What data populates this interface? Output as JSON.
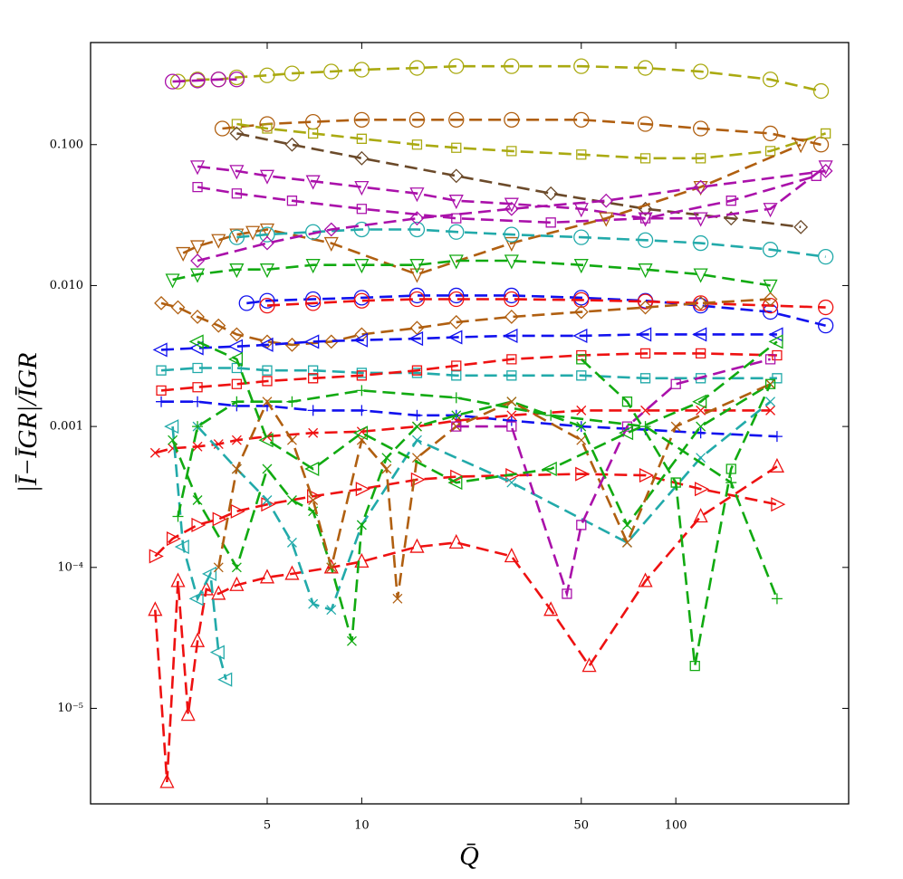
{
  "chart_data": {
    "type": "line",
    "xscale": "log",
    "yscale": "log",
    "xlabel": "Q̄",
    "ylabel": "|Ī−ĪGR|/ĪGR",
    "xlim": [
      1.37,
      355
    ],
    "ylim": [
      2.1e-06,
      0.53
    ],
    "xticks": [
      5,
      10,
      50,
      100
    ],
    "yticks": [
      {
        "value": 0.1,
        "label": "0.100"
      },
      {
        "value": 0.01,
        "label": "0.010"
      },
      {
        "value": 0.001,
        "label": "0.001"
      },
      {
        "value": 0.0001,
        "label": "10⁻⁴"
      },
      {
        "value": 1e-05,
        "label": "10⁻⁵"
      }
    ],
    "series": [
      {
        "color": "#aaaa11",
        "marker": "circle",
        "x": [
          2.6,
          3,
          3.5,
          4,
          5,
          6,
          8,
          10,
          15,
          20,
          30,
          50,
          80,
          120,
          200,
          290
        ],
        "values": [
          0.28,
          0.29,
          0.29,
          0.3,
          0.31,
          0.32,
          0.33,
          0.34,
          0.35,
          0.36,
          0.36,
          0.36,
          0.35,
          0.33,
          0.29,
          0.24
        ]
      },
      {
        "color": "#aa11aa",
        "marker": "circle",
        "x": [
          2.5,
          3,
          3.5,
          4
        ],
        "values": [
          0.28,
          0.285,
          0.29,
          0.29
        ]
      },
      {
        "color": "#b05f10",
        "marker": "circle",
        "x": [
          3.6,
          5,
          7,
          10,
          15,
          20,
          30,
          50,
          80,
          120,
          200,
          290
        ],
        "values": [
          0.13,
          0.14,
          0.145,
          0.15,
          0.15,
          0.15,
          0.15,
          0.15,
          0.14,
          0.13,
          0.12,
          0.1
        ]
      },
      {
        "color": "#aaaa11",
        "marker": "square",
        "x": [
          4,
          5,
          7,
          10,
          15,
          20,
          30,
          50,
          80,
          120,
          200,
          300
        ],
        "values": [
          0.14,
          0.13,
          0.12,
          0.11,
          0.1,
          0.095,
          0.09,
          0.085,
          0.08,
          0.08,
          0.09,
          0.12
        ]
      },
      {
        "color": "#6b4a2a",
        "marker": "diamond",
        "x": [
          4,
          6,
          10,
          20,
          40,
          80,
          150,
          250
        ],
        "values": [
          0.12,
          0.1,
          0.08,
          0.06,
          0.045,
          0.035,
          0.03,
          0.026
        ]
      },
      {
        "color": "#aa11aa",
        "marker": "triangle-down",
        "x": [
          3,
          4,
          5,
          7,
          10,
          15,
          20,
          30,
          50,
          80,
          120,
          200,
          300
        ],
        "values": [
          0.07,
          0.065,
          0.06,
          0.055,
          0.05,
          0.045,
          0.04,
          0.038,
          0.035,
          0.03,
          0.03,
          0.035,
          0.07
        ]
      },
      {
        "color": "#aa11aa",
        "marker": "square",
        "x": [
          3,
          4,
          6,
          10,
          20,
          40,
          80,
          150,
          280
        ],
        "values": [
          0.05,
          0.045,
          0.04,
          0.035,
          0.03,
          0.028,
          0.03,
          0.04,
          0.06
        ]
      },
      {
        "color": "#b05f10",
        "marker": "triangle-down",
        "x": [
          2.7,
          3,
          3.5,
          4,
          4.5,
          5,
          8,
          15,
          30,
          60,
          120,
          250
        ],
        "values": [
          0.017,
          0.019,
          0.021,
          0.023,
          0.024,
          0.025,
          0.02,
          0.012,
          0.02,
          0.03,
          0.05,
          0.1
        ]
      },
      {
        "color": "#22aaaa",
        "marker": "circle",
        "x": [
          4,
          5,
          7,
          10,
          15,
          20,
          30,
          50,
          80,
          120,
          200,
          300
        ],
        "values": [
          0.022,
          0.023,
          0.024,
          0.025,
          0.025,
          0.024,
          0.023,
          0.022,
          0.021,
          0.02,
          0.018,
          0.016
        ]
      },
      {
        "color": "#11aa11",
        "marker": "triangle-down",
        "x": [
          2.5,
          3,
          4,
          5,
          7,
          10,
          15,
          20,
          30,
          50,
          80,
          120,
          200
        ],
        "values": [
          0.011,
          0.012,
          0.013,
          0.013,
          0.014,
          0.014,
          0.014,
          0.015,
          0.015,
          0.014,
          0.013,
          0.012,
          0.01
        ]
      },
      {
        "color": "#aa11aa",
        "marker": "diamond",
        "x": [
          3,
          5,
          8,
          15,
          30,
          60,
          120,
          300
        ],
        "values": [
          0.015,
          0.02,
          0.025,
          0.03,
          0.035,
          0.04,
          0.05,
          0.065
        ]
      },
      {
        "color": "#1111ee",
        "marker": "circle",
        "x": [
          4.3,
          5,
          7,
          10,
          15,
          20,
          30,
          50,
          80,
          120,
          200,
          300
        ],
        "values": [
          0.0075,
          0.0078,
          0.008,
          0.0082,
          0.0085,
          0.0085,
          0.0085,
          0.0082,
          0.0078,
          0.0072,
          0.0065,
          0.0052
        ]
      },
      {
        "color": "#ee1111",
        "marker": "circle",
        "x": [
          5,
          7,
          10,
          15,
          20,
          30,
          50,
          80,
          120,
          200,
          300
        ],
        "values": [
          0.0072,
          0.0075,
          0.0078,
          0.008,
          0.008,
          0.008,
          0.0079,
          0.0077,
          0.0075,
          0.0072,
          0.007
        ]
      },
      {
        "color": "#b05f10",
        "marker": "diamond",
        "x": [
          2.3,
          2.6,
          3,
          3.5,
          4,
          5,
          6,
          8,
          10,
          15,
          20,
          30,
          50,
          80,
          120,
          200
        ],
        "values": [
          0.0075,
          0.007,
          0.006,
          0.0052,
          0.0045,
          0.004,
          0.0038,
          0.004,
          0.0045,
          0.005,
          0.0055,
          0.006,
          0.0065,
          0.007,
          0.0075,
          0.008
        ]
      },
      {
        "color": "#1111ee",
        "marker": "triangle-left",
        "x": [
          2.3,
          3,
          4,
          5,
          7,
          10,
          15,
          20,
          30,
          50,
          80,
          120,
          210
        ],
        "values": [
          0.0035,
          0.0036,
          0.0037,
          0.0038,
          0.004,
          0.0041,
          0.0042,
          0.0043,
          0.0044,
          0.0044,
          0.0045,
          0.0045,
          0.0045
        ]
      },
      {
        "color": "#22aaaa",
        "marker": "square",
        "x": [
          2.3,
          3,
          4,
          5,
          7,
          10,
          15,
          20,
          30,
          50,
          80,
          120,
          210
        ],
        "values": [
          0.0025,
          0.0026,
          0.0026,
          0.0025,
          0.0025,
          0.0024,
          0.0024,
          0.0023,
          0.0023,
          0.0023,
          0.0022,
          0.0022,
          0.0022
        ]
      },
      {
        "color": "#ee1111",
        "marker": "square",
        "x": [
          2.3,
          3,
          4,
          5,
          7,
          10,
          15,
          20,
          30,
          50,
          80,
          120,
          210
        ],
        "values": [
          0.0018,
          0.0019,
          0.002,
          0.0021,
          0.0022,
          0.0023,
          0.0025,
          0.0027,
          0.003,
          0.0032,
          0.0033,
          0.0033,
          0.0032
        ]
      },
      {
        "color": "#1111ee",
        "marker": "plus",
        "x": [
          2.3,
          3,
          4,
          5,
          7,
          10,
          15,
          20,
          30,
          50,
          80,
          120,
          210
        ],
        "values": [
          0.0015,
          0.0015,
          0.0014,
          0.0014,
          0.0013,
          0.0013,
          0.0012,
          0.0012,
          0.0011,
          0.001,
          0.00095,
          0.0009,
          0.00085
        ]
      },
      {
        "color": "#ee1111",
        "marker": "x",
        "x": [
          2.2,
          2.5,
          3,
          3.5,
          4,
          5,
          7,
          10,
          15,
          20,
          30,
          50,
          80,
          120,
          200
        ],
        "values": [
          0.00065,
          0.0007,
          0.00072,
          0.00075,
          0.0008,
          0.00085,
          0.0009,
          0.00092,
          0.001,
          0.0011,
          0.0012,
          0.0013,
          0.0013,
          0.0013,
          0.0013
        ]
      },
      {
        "color": "#ee1111",
        "marker": "triangle-right",
        "x": [
          2.2,
          2.5,
          3,
          3.5,
          4,
          5,
          7,
          10,
          15,
          20,
          30,
          50,
          80,
          120,
          210
        ],
        "values": [
          0.00012,
          0.00016,
          0.0002,
          0.00022,
          0.00025,
          0.00028,
          0.00032,
          0.00036,
          0.00042,
          0.00044,
          0.00045,
          0.00046,
          0.00045,
          0.00036,
          0.00028
        ]
      },
      {
        "color": "#ee1111",
        "marker": "triangle",
        "x": [
          2.2,
          2.4,
          2.6,
          2.8,
          3,
          3.2,
          3.5,
          4,
          5,
          6,
          8,
          10,
          15,
          20,
          30,
          40,
          53,
          80,
          120,
          210
        ],
        "values": [
          5e-05,
          3e-06,
          8e-05,
          9e-06,
          3e-05,
          7e-05,
          6.5e-05,
          7.5e-05,
          8.5e-05,
          9e-05,
          0.0001,
          0.00011,
          0.00014,
          0.00015,
          0.00012,
          5e-05,
          2e-05,
          8e-05,
          0.00023,
          0.00052
        ]
      },
      {
        "color": "#22aaaa",
        "marker": "triangle-left",
        "x": [
          2.5,
          2.7,
          3,
          3.3,
          3.5,
          3.7
        ],
        "values": [
          0.001,
          0.00014,
          6e-05,
          9e-05,
          2.5e-05,
          1.6e-05
        ]
      },
      {
        "color": "#22aaaa",
        "marker": "x",
        "x": [
          3,
          4,
          5,
          6,
          7,
          8,
          10,
          15,
          30,
          70,
          120,
          200
        ],
        "values": [
          0.001,
          0.0005,
          0.0003,
          0.00015,
          5.5e-05,
          5e-05,
          0.0002,
          0.0008,
          0.0004,
          0.00015,
          0.0006,
          0.0015
        ]
      },
      {
        "color": "#11aa11",
        "marker": "x",
        "x": [
          2.5,
          3,
          4,
          5,
          6,
          7,
          8,
          9.3,
          10,
          12,
          15,
          20,
          30,
          50,
          70,
          120,
          200
        ],
        "values": [
          0.0008,
          0.0003,
          0.0001,
          0.0005,
          0.0003,
          0.00025,
          0.0001,
          3e-05,
          0.0002,
          0.0006,
          0.001,
          0.0012,
          0.0015,
          0.001,
          0.0002,
          0.001,
          0.002
        ]
      },
      {
        "color": "#b05f10",
        "marker": "x",
        "x": [
          3.5,
          4,
          5,
          6,
          7,
          8,
          10,
          12,
          13,
          15,
          20,
          30,
          50,
          70,
          100,
          200
        ],
        "values": [
          0.0001,
          0.0005,
          0.0015,
          0.0008,
          0.0003,
          0.0001,
          0.0008,
          0.0005,
          6e-05,
          0.0006,
          0.001,
          0.0015,
          0.0008,
          0.00015,
          0.001,
          0.002
        ]
      },
      {
        "color": "#aa11aa",
        "marker": "square",
        "x": [
          20,
          30,
          45,
          50,
          70,
          100,
          200
        ],
        "values": [
          0.001,
          0.001,
          6.5e-05,
          0.0002,
          0.001,
          0.002,
          0.003
        ]
      },
      {
        "color": "#11aa11",
        "marker": "square",
        "x": [
          50,
          70,
          100,
          115,
          150,
          200
        ],
        "values": [
          0.003,
          0.0015,
          0.0004,
          2e-05,
          0.0005,
          0.002
        ]
      },
      {
        "color": "#11aa11",
        "marker": "plus",
        "x": [
          2.6,
          3,
          4,
          6,
          10,
          20,
          40,
          80,
          150,
          210
        ],
        "values": [
          0.00023,
          0.001,
          0.0015,
          0.0015,
          0.0018,
          0.0016,
          0.0012,
          0.001,
          0.0004,
          6e-05
        ]
      },
      {
        "color": "#11aa11",
        "marker": "triangle-left",
        "x": [
          3,
          4,
          5,
          7,
          10,
          20,
          40,
          70,
          120,
          210
        ],
        "values": [
          0.004,
          0.003,
          0.0008,
          0.0005,
          0.0009,
          0.0004,
          0.0005,
          0.0009,
          0.0015,
          0.004
        ]
      }
    ]
  }
}
